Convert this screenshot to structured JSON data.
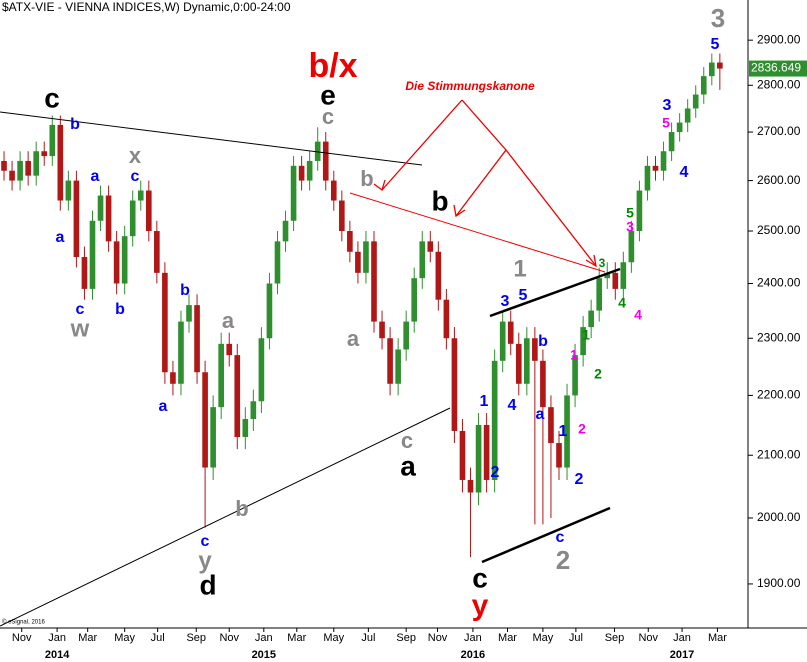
{
  "chart_data": {
    "type": "candlestick",
    "title": "$ATX-VIE - VIENNA INDICES,W) Dynamic,0:00-24:00",
    "footer": "© eSignal, 2016",
    "log_scale": true,
    "up_color": "#2f8f2f",
    "down_color": "#b01818",
    "categories": [
      null,
      null,
      null,
      null,
      null,
      null,
      null,
      null,
      null,
      null,
      null,
      null,
      null,
      null,
      null,
      null,
      null,
      null,
      null,
      null,
      null,
      null,
      null,
      null,
      null,
      null,
      null,
      null,
      null,
      null,
      null,
      null,
      null,
      null,
      null,
      null,
      null,
      null,
      null,
      null,
      null,
      null,
      null,
      null,
      null,
      null,
      null,
      null,
      null,
      null,
      null,
      null,
      null,
      null,
      null,
      null,
      null,
      null,
      null,
      null,
      null,
      null,
      null,
      null,
      null,
      null,
      null,
      null,
      null,
      null,
      null,
      null,
      null,
      null,
      null,
      null,
      null,
      null,
      null,
      null,
      null,
      null,
      null,
      null,
      null,
      null,
      null,
      null,
      null,
      null
    ],
    "open": [
      2640,
      2620,
      2600,
      2640,
      2610,
      2660,
      2650,
      2715,
      2560,
      2600,
      2450,
      2390,
      2520,
      2570,
      2480,
      2400,
      2490,
      2560,
      2580,
      2500,
      2420,
      2240,
      2220,
      2330,
      2360,
      2240,
      2080,
      2180,
      2290,
      2270,
      2130,
      2160,
      2190,
      2300,
      2400,
      2480,
      2520,
      2630,
      2600,
      2640,
      2680,
      2600,
      2560,
      2500,
      2460,
      2420,
      2480,
      2330,
      2300,
      2220,
      2280,
      2330,
      2410,
      2480,
      2460,
      2370,
      2300,
      2140,
      2060,
      2040,
      2150,
      2060,
      2260,
      2330,
      2290,
      2220,
      2300,
      2260,
      2180,
      2120,
      2080,
      2200,
      2270,
      2320,
      2350,
      2410,
      2420,
      2390,
      2440,
      2500,
      2580,
      2630,
      2620,
      2660,
      2700,
      2720,
      2750,
      2780,
      2820,
      2850
    ],
    "high": [
      2660,
      2640,
      2660,
      2660,
      2680,
      2680,
      2735,
      2735,
      2620,
      2620,
      2470,
      2540,
      2590,
      2590,
      2500,
      2510,
      2580,
      2600,
      2600,
      2520,
      2440,
      2260,
      2350,
      2380,
      2380,
      2260,
      2200,
      2310,
      2310,
      2290,
      2180,
      2210,
      2320,
      2420,
      2500,
      2540,
      2650,
      2650,
      2660,
      2710,
      2700,
      2620,
      2580,
      2520,
      2480,
      2500,
      2500,
      2350,
      2320,
      2300,
      2350,
      2430,
      2500,
      2500,
      2480,
      2390,
      2320,
      2160,
      2080,
      2170,
      2170,
      2280,
      2350,
      2350,
      2310,
      2320,
      2320,
      2280,
      2200,
      2140,
      2220,
      2290,
      2340,
      2370,
      2430,
      2440,
      2440,
      2460,
      2520,
      2600,
      2650,
      2650,
      2680,
      2720,
      2740,
      2770,
      2800,
      2840,
      2870,
      2870
    ],
    "low": [
      2600,
      2580,
      2580,
      2590,
      2590,
      2630,
      2630,
      2540,
      2540,
      2430,
      2370,
      2370,
      2500,
      2460,
      2380,
      2380,
      2470,
      2540,
      2480,
      2400,
      2220,
      2200,
      2200,
      2310,
      2220,
      1985,
      2060,
      2160,
      2250,
      2110,
      2110,
      2140,
      2170,
      2280,
      2380,
      2460,
      2500,
      2580,
      2580,
      2620,
      2580,
      2540,
      2480,
      2440,
      2400,
      2400,
      2310,
      2280,
      2200,
      2200,
      2260,
      2310,
      2390,
      2440,
      2350,
      2280,
      2120,
      2040,
      1940,
      2020,
      2040,
      2040,
      2240,
      2270,
      2200,
      2200,
      1990,
      1990,
      2000,
      2060,
      2060,
      2180,
      2250,
      2300,
      2330,
      2390,
      2370,
      2370,
      2420,
      2480,
      2560,
      2600,
      2600,
      2640,
      2680,
      2700,
      2730,
      2760,
      2800,
      2790
    ],
    "close": [
      2620,
      2600,
      2640,
      2610,
      2660,
      2650,
      2715,
      2560,
      2600,
      2450,
      2390,
      2520,
      2570,
      2480,
      2400,
      2490,
      2560,
      2580,
      2500,
      2420,
      2240,
      2220,
      2330,
      2360,
      2240,
      2080,
      2180,
      2290,
      2270,
      2130,
      2160,
      2190,
      2300,
      2400,
      2480,
      2520,
      2630,
      2600,
      2640,
      2680,
      2600,
      2560,
      2500,
      2460,
      2420,
      2480,
      2330,
      2300,
      2220,
      2280,
      2330,
      2410,
      2480,
      2460,
      2370,
      2300,
      2140,
      2060,
      2040,
      2150,
      2060,
      2260,
      2330,
      2290,
      2220,
      2300,
      2260,
      2180,
      2120,
      2080,
      2200,
      2270,
      2320,
      2350,
      2410,
      2420,
      2390,
      2440,
      2500,
      2580,
      2630,
      2620,
      2660,
      2700,
      2720,
      2750,
      2780,
      2820,
      2850,
      2836.649
    ],
    "ylim": [
      1836,
      2992
    ],
    "yticks": [
      {
        "value": 1900,
        "label": "1900.00"
      },
      {
        "value": 2000,
        "label": "2000.00"
      },
      {
        "value": 2100,
        "label": "2100.00"
      },
      {
        "value": 2200,
        "label": "2200.00"
      },
      {
        "value": 2300,
        "label": "2300.00"
      },
      {
        "value": 2400,
        "label": "2400.00"
      },
      {
        "value": 2500,
        "label": "2500.00"
      },
      {
        "value": 2600,
        "label": "2600.00"
      },
      {
        "value": 2700,
        "label": "2700.00"
      },
      {
        "value": 2800,
        "label": "2800.00"
      },
      {
        "value": 2900,
        "label": "2900.00"
      }
    ],
    "xticks": [
      {
        "value": 2.2,
        "label": "Nov"
      },
      {
        "value": 6.6,
        "label": "Jan"
      },
      {
        "value": 10.4,
        "label": "Mar"
      },
      {
        "value": 15.0,
        "label": "May"
      },
      {
        "value": 19.1,
        "label": "Jul"
      },
      {
        "value": 23.9,
        "label": "Sep"
      },
      {
        "value": 28.0,
        "label": "Nov"
      },
      {
        "value": 32.3,
        "label": "Jan"
      },
      {
        "value": 36.4,
        "label": "Mar"
      },
      {
        "value": 41.0,
        "label": "May"
      },
      {
        "value": 45.3,
        "label": "Jul"
      },
      {
        "value": 50.0,
        "label": "Sep"
      },
      {
        "value": 53.9,
        "label": "Nov"
      },
      {
        "value": 58.3,
        "label": "Jan"
      },
      {
        "value": 62.6,
        "label": "Mar"
      },
      {
        "value": 67.0,
        "label": "May"
      },
      {
        "value": 71.1,
        "label": "Jul"
      },
      {
        "value": 75.9,
        "label": "Sep"
      },
      {
        "value": 80.1,
        "label": "Nov"
      },
      {
        "value": 84.3,
        "label": "Jan"
      },
      {
        "value": 88.7,
        "label": "Mar"
      }
    ],
    "year_ticks": [
      {
        "value": 6.6,
        "label": "2014"
      },
      {
        "value": 32.3,
        "label": "2015"
      },
      {
        "value": 58.3,
        "label": "2016"
      },
      {
        "value": 84.3,
        "label": "2017"
      }
    ],
    "annotations": [
      {
        "text": "c",
        "color": "#000000"
      },
      {
        "text": "b",
        "color": "#0000ee"
      },
      {
        "text": "x",
        "color": "#888888"
      },
      {
        "text": "c",
        "color": "#0000ee"
      },
      {
        "text": "a",
        "color": "#0000ee"
      },
      {
        "text": "a",
        "color": "#0000ee"
      },
      {
        "text": "c",
        "color": "#0000ee"
      },
      {
        "text": "w",
        "color": "#888888"
      },
      {
        "text": "b",
        "color": "#0000ee"
      },
      {
        "text": "b",
        "color": "#0000ee"
      },
      {
        "text": "a",
        "color": "#0000ee"
      },
      {
        "text": "a",
        "color": "#888888"
      },
      {
        "text": "b",
        "color": "#888888"
      },
      {
        "text": "c",
        "color": "#0000ee"
      },
      {
        "text": "y",
        "color": "#888888"
      },
      {
        "text": "d",
        "color": "#000000"
      },
      {
        "text": "b/x",
        "color": "#ee0000"
      },
      {
        "text": "e",
        "color": "#000000"
      },
      {
        "text": "c",
        "color": "#888888"
      },
      {
        "text": "b",
        "color": "#888888"
      },
      {
        "text": "a",
        "color": "#888888"
      },
      {
        "text": "b",
        "color": "#000000"
      },
      {
        "text": "c",
        "color": "#888888"
      },
      {
        "text": "a",
        "color": "#000000"
      },
      {
        "text": "Die Stimmungskanone",
        "color": "#ee0000"
      },
      {
        "text": "1",
        "color": "#888888"
      },
      {
        "text": "3",
        "color": "#0000ee"
      },
      {
        "text": "5",
        "color": "#0000ee"
      },
      {
        "text": "1",
        "color": "#0000ee"
      },
      {
        "text": "2",
        "color": "#0000ee"
      },
      {
        "text": "4",
        "color": "#0000ee"
      },
      {
        "text": "a",
        "color": "#0000ee"
      },
      {
        "text": "b",
        "color": "#0000ee"
      },
      {
        "text": "c",
        "color": "#000000"
      },
      {
        "text": "y",
        "color": "#ee0000"
      },
      {
        "text": "1",
        "color": "#0000ee"
      },
      {
        "text": "2",
        "color": "#0000ee"
      },
      {
        "text": "c",
        "color": "#0000ee"
      },
      {
        "text": "2",
        "color": "#888888"
      },
      {
        "text": "1",
        "color": "#ee00ee"
      },
      {
        "text": "2",
        "color": "#ee00ee"
      },
      {
        "text": "1",
        "color": "#008800"
      },
      {
        "text": "2",
        "color": "#008800"
      },
      {
        "text": "3",
        "color": "#008800"
      },
      {
        "text": "4",
        "color": "#008800"
      },
      {
        "text": "4",
        "color": "#ee00ee"
      },
      {
        "text": "3",
        "color": "#ee00ee"
      },
      {
        "text": "5",
        "color": "#008800"
      },
      {
        "text": "4",
        "color": "#0000ee"
      },
      {
        "text": "5",
        "color": "#ee00ee"
      },
      {
        "text": "3",
        "color": "#0000ee"
      },
      {
        "text": "3",
        "color": "#888888"
      },
      {
        "text": "5",
        "color": "#0000ee"
      }
    ]
  }
}
